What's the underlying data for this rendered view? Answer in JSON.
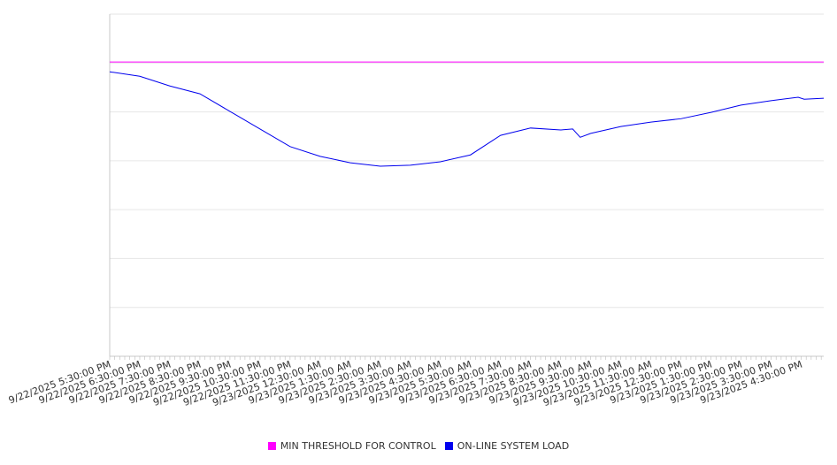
{
  "chart_data": {
    "type": "line",
    "title": "",
    "xlabel": "",
    "ylabel": "",
    "ylim": [
      0,
      7
    ],
    "grid": true,
    "legend_position": "bottom",
    "x_tick_labels": [
      "9/22/2025 5:30:00 PM",
      "9/22/2025 6:30:00 PM",
      "9/22/2025 7:30:00 PM",
      "9/22/2025 8:30:00 PM",
      "9/22/2025 9:30:00 PM",
      "9/22/2025 10:30:00 PM",
      "9/22/2025 11:30:00 PM",
      "9/23/2025 12:30:00 AM",
      "9/23/2025 1:30:00 AM",
      "9/23/2025 2:30:00 AM",
      "9/23/2025 3:30:00 AM",
      "9/23/2025 4:30:00 AM",
      "9/23/2025 5:30:00 AM",
      "9/23/2025 6:30:00 AM",
      "9/23/2025 7:30:00 AM",
      "9/23/2025 8:30:00 AM",
      "9/23/2025 9:30:00 AM",
      "9/23/2025 10:30:00 AM",
      "9/23/2025 11:30:00 AM",
      "9/23/2025 12:30:00 PM",
      "9/23/2025 1:30:00 PM",
      "9/23/2025 2:30:00 PM",
      "9/23/2025 3:30:00 PM",
      "9/23/2025 4:30:00 PM"
    ],
    "x_hours": [
      0,
      1,
      2,
      3,
      4,
      5,
      6,
      7,
      8,
      9,
      10,
      11,
      12,
      13,
      14,
      15,
      15.4,
      15.65,
      16,
      17,
      18,
      19,
      20,
      21,
      22,
      22.9,
      23.1,
      23.75
    ],
    "xlim": [
      0,
      23.75
    ],
    "series": [
      {
        "name": "MIN THRESHOLD FOR CONTROL",
        "color": "#ff00ff",
        "values": [
          6.02,
          6.02,
          6.02,
          6.02,
          6.02,
          6.02,
          6.02,
          6.02,
          6.02,
          6.02,
          6.02,
          6.02,
          6.02,
          6.02,
          6.02,
          6.02,
          6.02,
          6.02,
          6.02,
          6.02,
          6.02,
          6.02,
          6.02,
          6.02,
          6.02,
          6.02,
          6.02,
          6.02
        ]
      },
      {
        "name": "ON-LINE SYSTEM LOAD",
        "color": "#0000ee",
        "values": [
          5.82,
          5.73,
          5.53,
          5.37,
          5.01,
          4.65,
          4.29,
          4.09,
          3.96,
          3.89,
          3.91,
          3.98,
          4.12,
          4.52,
          4.67,
          4.63,
          4.65,
          4.48,
          4.56,
          4.7,
          4.79,
          4.86,
          4.99,
          5.14,
          5.23,
          5.3,
          5.26,
          5.28
        ]
      }
    ]
  }
}
